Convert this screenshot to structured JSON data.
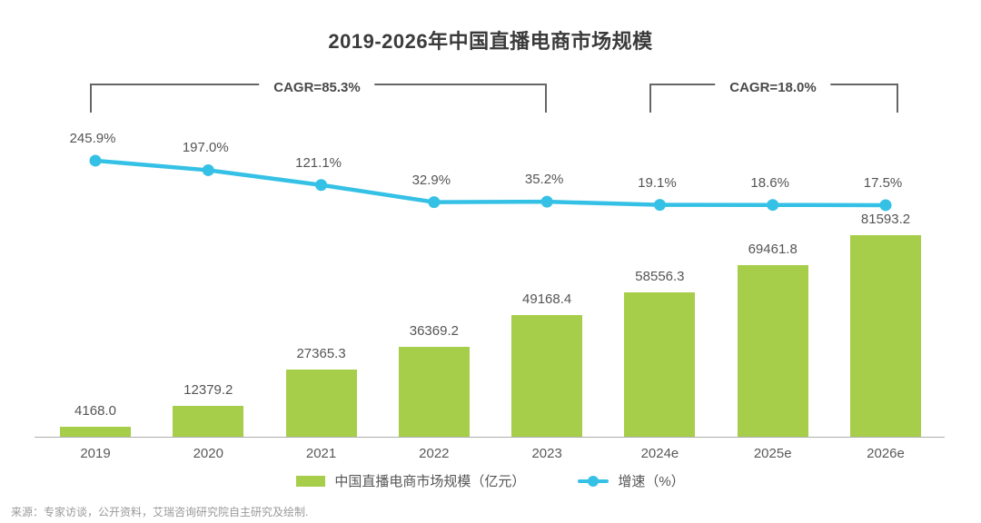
{
  "title": "2019-2026年中国直播电商市场规模",
  "annotations": {
    "cagr_left": "CAGR=85.3%",
    "cagr_right": "CAGR=18.0%"
  },
  "legend": {
    "bar_label": "中国直播电商市场规模（亿元）",
    "line_label": "增速（%）"
  },
  "source": "来源：专家访谈，公开资料，艾瑞咨询研究院自主研究及绘制.",
  "colors": {
    "bar": "#a7ce4a",
    "line": "#35c1e6",
    "axis": "#adadad",
    "title_text": "#3b3b3b",
    "label_text": "#555555"
  },
  "chart_data": {
    "type": "bar",
    "subtype": "bar+line-combo",
    "title": "2019-2026年中国直播电商市场规模",
    "categories": [
      "2019",
      "2020",
      "2021",
      "2022",
      "2023",
      "2024e",
      "2025e",
      "2026e"
    ],
    "series": [
      {
        "name": "中国直播电商市场规模（亿元）",
        "type": "bar",
        "values": [
          4168.0,
          12379.2,
          27365.3,
          36369.2,
          49168.4,
          58556.3,
          69461.8,
          81593.2
        ],
        "labels": [
          "4168.0",
          "12379.2",
          "27365.3",
          "36369.2",
          "49168.4",
          "58556.3",
          "69461.8",
          "81593.2"
        ],
        "color": "#a7ce4a"
      },
      {
        "name": "增速（%）",
        "type": "line",
        "values": [
          245.9,
          197.0,
          121.1,
          32.9,
          35.2,
          19.1,
          18.6,
          17.5
        ],
        "labels": [
          "245.9%",
          "197.0%",
          "121.1%",
          "32.9%",
          "35.2%",
          "19.1%",
          "18.6%",
          "17.5%"
        ],
        "color": "#35c1e6"
      }
    ],
    "xlabel": "",
    "ylabel": "",
    "ylim_bar": [
      0,
      86000
    ],
    "ylim_line_percent": [
      0,
      270
    ],
    "grid": false,
    "legend_position": "bottom",
    "annotations": [
      "CAGR=85.3% (2019-2023)",
      "CAGR=18.0% (2024e-2026e)"
    ]
  }
}
